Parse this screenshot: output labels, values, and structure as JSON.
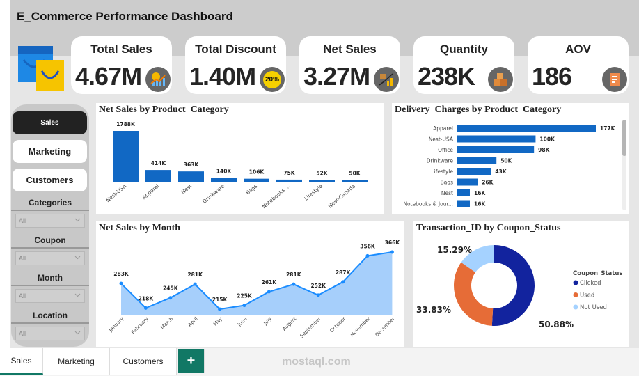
{
  "title": "E_Commerce Performance Dashboard",
  "kpis": [
    {
      "label": "Total Sales",
      "value": "4.67M",
      "icon": "sales-growth-icon"
    },
    {
      "label": "Total Discount",
      "value": "1.40M",
      "icon": "discount-20-off-icon",
      "badge": "20%"
    },
    {
      "label": "Net Sales",
      "value": "3.27M",
      "icon": "net-sales-chart-icon"
    },
    {
      "label": "Quantity",
      "value": "238K",
      "icon": "boxes-icon"
    },
    {
      "label": "AOV",
      "value": "186",
      "icon": "order-value-icon"
    }
  ],
  "sidebar": {
    "nav": [
      {
        "label": "Sales",
        "active": true
      },
      {
        "label": "Marketing"
      },
      {
        "label": "Customers"
      }
    ],
    "filters": [
      {
        "label": "Categories",
        "value": "All"
      },
      {
        "label": "Coupon",
        "value": "All"
      },
      {
        "label": "Month",
        "value": "All"
      },
      {
        "label": "Location",
        "value": "All"
      }
    ]
  },
  "chart_data": [
    {
      "type": "bar",
      "title": "Net Sales by Product_Category",
      "categories": [
        "Nest-USA",
        "Apparel",
        "Nest",
        "Drinkware",
        "Bags",
        "Notebooks ...",
        "Lifestyle",
        "Nest-Canada"
      ],
      "values": [
        1788,
        414,
        363,
        140,
        106,
        75,
        52,
        50
      ],
      "labels": [
        "1788K",
        "414K",
        "363K",
        "140K",
        "106K",
        "75K",
        "52K",
        "50K"
      ],
      "color": "#1168c4"
    },
    {
      "type": "bar",
      "orientation": "horizontal",
      "title": "Delivery_Charges by Product_Category",
      "categories": [
        "Apparel",
        "Nest-USA",
        "Office",
        "Drinkware",
        "Lifestyle",
        "Bags",
        "Nest",
        "Notebooks & Jour..."
      ],
      "values": [
        177,
        100,
        98,
        50,
        43,
        26,
        16,
        16
      ],
      "labels": [
        "177K",
        "100K",
        "98K",
        "50K",
        "43K",
        "26K",
        "16K",
        "16K"
      ],
      "color": "#1168c4"
    },
    {
      "type": "area",
      "title": "Net Sales by Month",
      "categories": [
        "January",
        "February",
        "March",
        "April",
        "May",
        "June",
        "July",
        "August",
        "September",
        "October",
        "November",
        "December"
      ],
      "values": [
        283,
        218,
        245,
        281,
        215,
        225,
        261,
        281,
        252,
        287,
        356,
        366
      ],
      "labels": [
        "283K",
        "218K",
        "245K",
        "281K",
        "215K",
        "225K",
        "261K",
        "281K",
        "252K",
        "287K",
        "356K",
        "366K"
      ],
      "color": "#1a8cff",
      "fill": "#a6cffb"
    },
    {
      "type": "pie",
      "donut": true,
      "title": "Transaction_ID by Coupon_Status",
      "legend_title": "Coupon_Status",
      "legend": "right",
      "slices": [
        {
          "name": "Clicked",
          "value": 50.88,
          "label": "50.88%",
          "color": "#12239e"
        },
        {
          "name": "Used",
          "value": 33.83,
          "label": "33.83%",
          "color": "#e66c37"
        },
        {
          "name": "Not Used",
          "value": 15.29,
          "label": "15.29%",
          "color": "#a5d2ff"
        }
      ]
    }
  ],
  "tabs": [
    {
      "label": "Sales",
      "active": true
    },
    {
      "label": "Marketing"
    },
    {
      "label": "Customers"
    }
  ],
  "add_tab": "+",
  "watermark": "mostaql.com"
}
